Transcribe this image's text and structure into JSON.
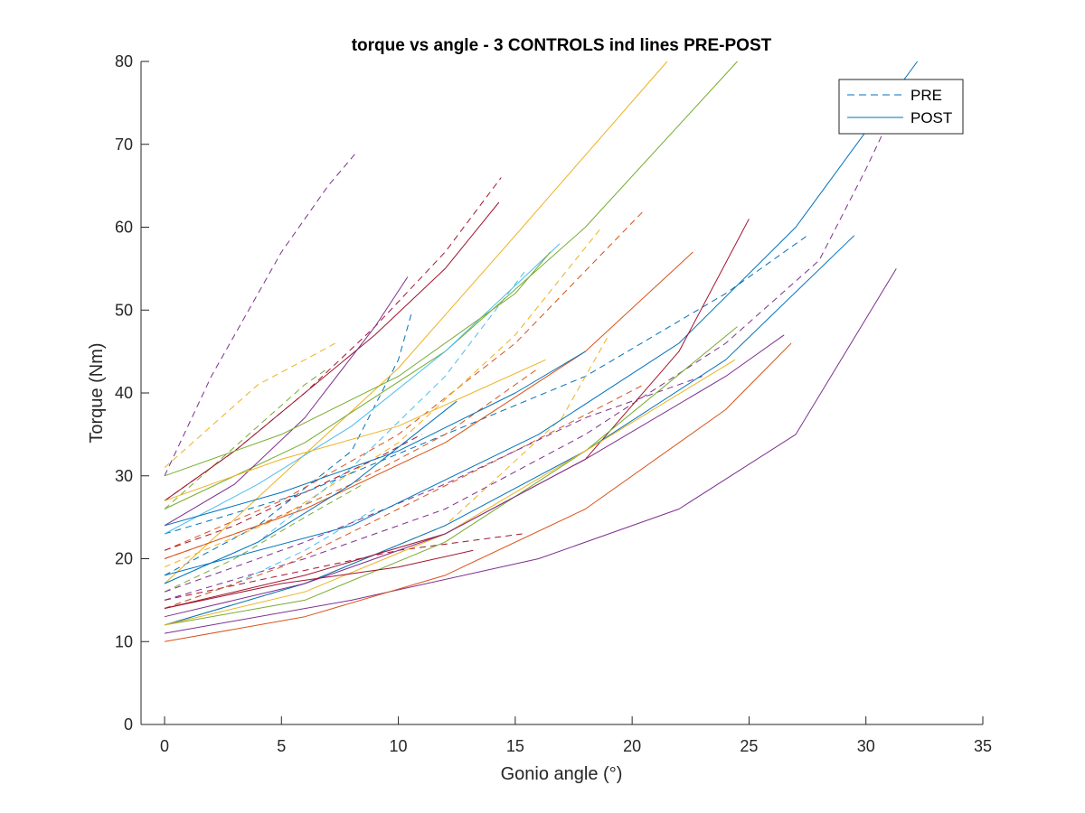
{
  "chart_data": {
    "type": "line",
    "title": "torque vs angle - 3 CONTROLS ind lines PRE-POST",
    "xlabel": "Gonio angle (°)",
    "ylabel": "Torque (Nm)",
    "xlim": [
      0,
      35
    ],
    "ylim": [
      0,
      80
    ],
    "xticks": [
      "0",
      "5",
      "10",
      "15",
      "20",
      "25",
      "30",
      "35"
    ],
    "yticks": [
      "0",
      "10",
      "20",
      "30",
      "40",
      "50",
      "60",
      "70",
      "80"
    ],
    "grid": false,
    "legend": {
      "placement": "top-right",
      "entries": [
        {
          "label": "PRE",
          "style": "dashed",
          "color": "#0072BD"
        },
        {
          "label": "POST",
          "style": "solid",
          "color": "#0072BD"
        }
      ]
    },
    "series": [
      {
        "group": "PRE",
        "color": "#7E2F8E",
        "x": [
          0,
          2,
          4,
          5,
          6,
          7,
          8.2
        ],
        "y": [
          30,
          42,
          52,
          57,
          61,
          65,
          69
        ]
      },
      {
        "group": "PRE",
        "color": "#A2142F",
        "x": [
          0,
          3,
          6,
          9,
          12,
          14.4
        ],
        "y": [
          27,
          33,
          40,
          48,
          57,
          66
        ]
      },
      {
        "group": "PRE",
        "color": "#EDB120",
        "x": [
          0,
          2,
          4,
          6,
          7.3
        ],
        "y": [
          31,
          36,
          41,
          44,
          46
        ]
      },
      {
        "group": "PRE",
        "color": "#77AC30",
        "x": [
          0,
          2,
          4,
          6,
          7
        ],
        "y": [
          26,
          31,
          36,
          41,
          43
        ]
      },
      {
        "group": "PRE",
        "color": "#0072BD",
        "x": [
          0,
          4,
          8,
          10,
          10.6
        ],
        "y": [
          18,
          24,
          33,
          44,
          50
        ]
      },
      {
        "group": "PRE",
        "color": "#D95319",
        "x": [
          0,
          5,
          10,
          15,
          20.5
        ],
        "y": [
          21,
          27,
          35,
          46,
          62
        ]
      },
      {
        "group": "PRE",
        "color": "#EDB120",
        "x": [
          0,
          5,
          10,
          15,
          18.7
        ],
        "y": [
          19,
          25,
          34,
          47,
          60
        ]
      },
      {
        "group": "PRE",
        "color": "#4DBEEE",
        "x": [
          0,
          4,
          8,
          12,
          15.5
        ],
        "y": [
          17,
          22,
          31,
          42,
          55
        ]
      },
      {
        "group": "PRE",
        "color": "#0072BD",
        "x": [
          0,
          6,
          12,
          18,
          24,
          27.5
        ],
        "y": [
          23,
          28,
          35,
          42,
          52,
          59
        ]
      },
      {
        "group": "PRE",
        "color": "#7E2F8E",
        "x": [
          0,
          6,
          12,
          18,
          24,
          28,
          30,
          31.5
        ],
        "y": [
          15,
          20,
          26,
          35,
          46,
          56,
          67,
          76
        ]
      },
      {
        "group": "PRE",
        "color": "#EDB120",
        "x": [
          0,
          6,
          12,
          17,
          19
        ],
        "y": [
          12,
          17,
          24,
          37,
          47
        ]
      },
      {
        "group": "PRE",
        "color": "#A2142F",
        "x": [
          0,
          5,
          10,
          15.3
        ],
        "y": [
          15,
          18,
          21,
          23
        ]
      },
      {
        "group": "PRE",
        "color": "#4DBEEE",
        "x": [
          0,
          3,
          6,
          9
        ],
        "y": [
          14,
          17,
          21,
          26
        ]
      },
      {
        "group": "PRE",
        "color": "#77AC30",
        "x": [
          0,
          3,
          6,
          8.5
        ],
        "y": [
          16,
          20,
          25,
          29
        ]
      },
      {
        "group": "PRE",
        "color": "#D95319",
        "x": [
          0,
          5,
          10,
          15,
          20.5
        ],
        "y": [
          14,
          19,
          26,
          33,
          41
        ]
      },
      {
        "group": "PRE",
        "color": "#A2142F",
        "x": [
          0,
          3,
          6,
          9,
          11
        ],
        "y": [
          21,
          24,
          28,
          32,
          35
        ]
      },
      {
        "group": "PRE",
        "color": "#7E2F8E",
        "x": [
          0,
          6,
          12,
          18,
          23
        ],
        "y": [
          16,
          22,
          29,
          37,
          42
        ]
      },
      {
        "group": "PRE",
        "color": "#D95319",
        "x": [
          0,
          4,
          8,
          12,
          16
        ],
        "y": [
          20,
          24,
          29,
          35,
          43
        ]
      },
      {
        "group": "POST",
        "color": "#EDB120",
        "x": [
          0,
          5,
          10,
          15,
          21.5
        ],
        "y": [
          17,
          30,
          43,
          59,
          80
        ]
      },
      {
        "group": "POST",
        "color": "#77AC30",
        "x": [
          0,
          6,
          12,
          18,
          24.5
        ],
        "y": [
          26,
          34,
          45,
          60,
          80
        ]
      },
      {
        "group": "POST",
        "color": "#0072BD",
        "x": [
          0,
          8,
          16,
          22,
          27,
          32.2
        ],
        "y": [
          18,
          24,
          35,
          46,
          60,
          80
        ]
      },
      {
        "group": "POST",
        "color": "#A2142F",
        "x": [
          0,
          3,
          6,
          9,
          12,
          14.3
        ],
        "y": [
          27,
          33,
          40,
          47,
          55,
          63
        ]
      },
      {
        "group": "POST",
        "color": "#7E2F8E",
        "x": [
          0,
          3,
          6,
          9,
          10.4
        ],
        "y": [
          24,
          29,
          37,
          48,
          54
        ]
      },
      {
        "group": "POST",
        "color": "#4DBEEE",
        "x": [
          0,
          4,
          8,
          12,
          16.9
        ],
        "y": [
          23,
          29,
          36,
          45,
          58
        ]
      },
      {
        "group": "POST",
        "color": "#77AC30",
        "x": [
          0,
          5,
          10,
          15,
          16.5
        ],
        "y": [
          30,
          35,
          42,
          52,
          57
        ]
      },
      {
        "group": "POST",
        "color": "#EDB120",
        "x": [
          0,
          5,
          10,
          16.3
        ],
        "y": [
          27,
          32,
          36,
          44
        ]
      },
      {
        "group": "POST",
        "color": "#D95319",
        "x": [
          0,
          6,
          12,
          18,
          22.6
        ],
        "y": [
          20,
          26,
          34,
          45,
          57
        ]
      },
      {
        "group": "POST",
        "color": "#0072BD",
        "x": [
          0,
          6,
          12,
          18,
          24,
          29.5
        ],
        "y": [
          12,
          17,
          24,
          33,
          44,
          59
        ]
      },
      {
        "group": "POST",
        "color": "#7E2F8E",
        "x": [
          0,
          8,
          16,
          22,
          27,
          31.3
        ],
        "y": [
          11,
          15,
          20,
          26,
          35,
          55
        ]
      },
      {
        "group": "POST",
        "color": "#D95319",
        "x": [
          0,
          6,
          12,
          18,
          24,
          26.8
        ],
        "y": [
          10,
          13,
          18,
          26,
          38,
          46
        ]
      },
      {
        "group": "POST",
        "color": "#A2142F",
        "x": [
          0,
          6,
          12,
          18,
          22,
          25
        ],
        "y": [
          14,
          18,
          23,
          32,
          45,
          61
        ]
      },
      {
        "group": "POST",
        "color": "#77AC30",
        "x": [
          0,
          6,
          12,
          18,
          24.5
        ],
        "y": [
          12,
          15,
          22,
          33,
          48
        ]
      },
      {
        "group": "POST",
        "color": "#EDB120",
        "x": [
          0,
          6,
          12,
          18,
          24.4
        ],
        "y": [
          12,
          16,
          23,
          33,
          44
        ]
      },
      {
        "group": "POST",
        "color": "#7E2F8E",
        "x": [
          0,
          6,
          12,
          18,
          24,
          26.5
        ],
        "y": [
          13,
          17,
          23,
          32,
          42,
          47
        ]
      },
      {
        "group": "POST",
        "color": "#A2142F",
        "x": [
          0,
          5,
          10,
          13.2
        ],
        "y": [
          14,
          17,
          19,
          21
        ]
      },
      {
        "group": "POST",
        "color": "#0072BD",
        "x": [
          0,
          4,
          8,
          12.5
        ],
        "y": [
          17,
          22,
          29,
          39
        ]
      },
      {
        "group": "POST",
        "color": "#0072BD",
        "x": [
          0,
          5,
          10,
          15,
          18
        ],
        "y": [
          24,
          28,
          33,
          40,
          45
        ]
      }
    ]
  }
}
